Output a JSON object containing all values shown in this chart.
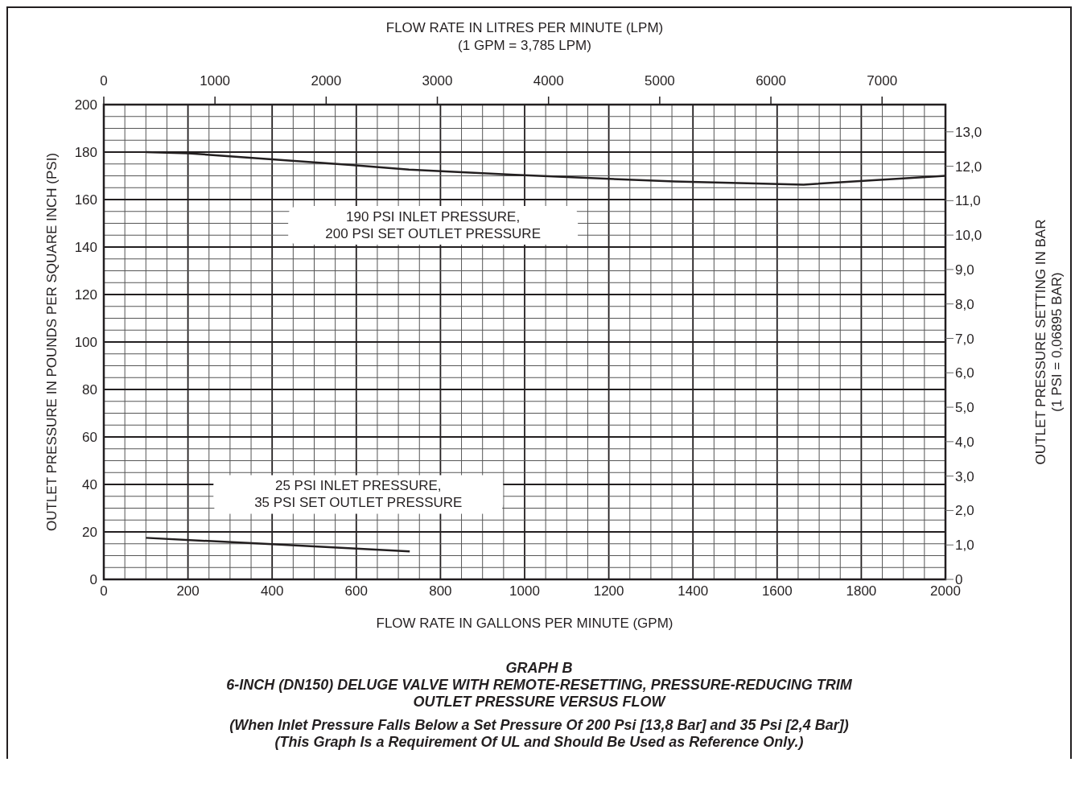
{
  "chart_data": {
    "type": "line",
    "title": "GRAPH B",
    "subtitle": "6-INCH (DN150) DELUGE VALVE WITH REMOTE-RESETTING, PRESSURE-REDUCING TRIM",
    "xlabel": "FLOW RATE IN GALLONS PER MINUTE (GPM)",
    "ylabel": "OUTLET PRESSURE IN POUNDS PER SQUARE INCH (PSI)",
    "x2label": "FLOW RATE IN LITRES PER MINUTE (LPM)",
    "y2label": "OUTLET PRESSURE SETTING IN BAR",
    "annotations": [
      "(1 GPM = 3,785 LPM)",
      "(1 PSI = 0,06895 BAR)",
      "OUTLET PRESSURE VERSUS FLOW",
      "(When Inlet Pressure Falls Below a Set Pressure Of 200 Psi [13,8 Bar] and 35 Psi [2,4 Bar])",
      "(This Graph Is a Requirement Of UL and Should Be Used as Reference Only.)"
    ],
    "series": [
      {
        "name": "190 PSI INLET PRESSURE, 200 PSI SET OUTLET PRESSURE",
        "color": "#231f20",
        "x": [
          100,
          200,
          587,
          725,
          977,
          1356,
          1663,
          2000
        ],
        "values": [
          180,
          179.5,
          174.6,
          172.6,
          170.4,
          167.6,
          166.3,
          170
        ]
      },
      {
        "name": "25 PSI INLET PRESSURE, 35 PSI SET OUTLET PRESSURE",
        "color": "#231f20",
        "x": [
          100,
          400,
          727
        ],
        "values": [
          17.5,
          14.8,
          11.8
        ]
      }
    ],
    "xlim": [
      0,
      2000
    ],
    "xticks": [
      0,
      {
        "value": 50,
        "label": null
      },
      {
        "value": 100,
        "label": null
      },
      {
        "value": 150,
        "label": null
      },
      200,
      {
        "value": 250,
        "label": null
      },
      {
        "value": 300,
        "label": null
      },
      {
        "value": 350,
        "label": null
      },
      400,
      {
        "value": 450,
        "label": null
      },
      {
        "value": 500,
        "label": null
      },
      {
        "value": 550,
        "label": null
      },
      600,
      {
        "value": 650,
        "label": null
      },
      {
        "value": 700,
        "label": null
      },
      {
        "value": 750,
        "label": null
      },
      800,
      {
        "value": 850,
        "label": null
      },
      {
        "value": 900,
        "label": null
      },
      {
        "value": 950,
        "label": null
      },
      1000,
      {
        "value": 1050,
        "label": null
      },
      {
        "value": 1100,
        "label": null
      },
      {
        "value": 1150,
        "label": null
      },
      1200,
      {
        "value": 1250,
        "label": null
      },
      {
        "value": 1300,
        "label": null
      },
      {
        "value": 1350,
        "label": null
      },
      1400,
      {
        "value": 1450,
        "label": null
      },
      {
        "value": 1500,
        "label": null
      },
      {
        "value": 1550,
        "label": null
      },
      1600,
      {
        "value": 1650,
        "label": null
      },
      {
        "value": 1700,
        "label": null
      },
      {
        "value": 1750,
        "label": null
      },
      1800,
      {
        "value": 1850,
        "label": null
      },
      {
        "value": 1900,
        "label": null
      },
      {
        "value": 1950,
        "label": null
      },
      2000
    ],
    "ylim": [
      0,
      200
    ],
    "yticks": [
      0,
      {
        "value": 5,
        "label": null
      },
      {
        "value": 10,
        "label": null
      },
      {
        "value": 15,
        "label": null
      },
      20,
      {
        "value": 25,
        "label": null
      },
      {
        "value": 30,
        "label": null
      },
      {
        "value": 35,
        "label": null
      },
      40,
      {
        "value": 45,
        "label": null
      },
      {
        "value": 50,
        "label": null
      },
      {
        "value": 55,
        "label": null
      },
      60,
      {
        "value": 65,
        "label": null
      },
      {
        "value": 70,
        "label": null
      },
      {
        "value": 75,
        "label": null
      },
      80,
      {
        "value": 85,
        "label": null
      },
      {
        "value": 90,
        "label": null
      },
      {
        "value": 95,
        "label": null
      },
      100,
      {
        "value": 105,
        "label": null
      },
      {
        "value": 110,
        "label": null
      },
      {
        "value": 115,
        "label": null
      },
      120,
      {
        "value": 125,
        "label": null
      },
      {
        "value": 130,
        "label": null
      },
      {
        "value": 135,
        "label": null
      },
      140,
      {
        "value": 145,
        "label": null
      },
      {
        "value": 150,
        "label": null
      },
      {
        "value": 155,
        "label": null
      },
      160,
      {
        "value": 165,
        "label": null
      },
      {
        "value": 170,
        "label": null
      },
      {
        "value": 175,
        "label": null
      },
      180,
      {
        "value": 185,
        "label": null
      },
      {
        "value": 190,
        "label": null
      },
      {
        "value": 195,
        "label": null
      },
      200
    ],
    "x2lim": [
      0,
      7570
    ],
    "x2ticks": [
      0,
      1000,
      2000,
      3000,
      4000,
      5000,
      6000,
      7000
    ],
    "y2lim": [
      0,
      13.79
    ],
    "y2ticks": [
      0,
      {
        "value": 1,
        "label": "1,0"
      },
      {
        "value": 2,
        "label": "2,0"
      },
      {
        "value": 3,
        "label": "3,0"
      },
      {
        "value": 4,
        "label": "4,0"
      },
      {
        "value": 5,
        "label": "5,0"
      },
      {
        "value": 6,
        "label": "6,0"
      },
      {
        "value": 7,
        "label": "7,0"
      },
      {
        "value": 8,
        "label": "8,0"
      },
      {
        "value": 9,
        "label": "9,0"
      },
      {
        "value": 10,
        "label": "10,0"
      },
      {
        "value": 11,
        "label": "11,0"
      },
      {
        "value": 12,
        "label": "12,0"
      },
      {
        "value": 13,
        "label": "13,0"
      }
    ],
    "grid": true,
    "marker": "none",
    "line_style": "solid"
  }
}
